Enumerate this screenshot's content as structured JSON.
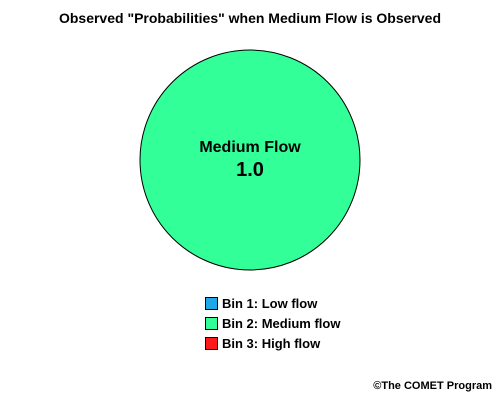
{
  "chart_data": {
    "type": "pie",
    "title": "Observed \"Probabilities\" when Medium Flow is Observed",
    "categories": [
      "Bin 1: Low flow",
      "Bin 2: Medium flow",
      "Bin 3: High flow"
    ],
    "values": [
      0,
      1.0,
      0
    ],
    "colors": [
      "#1ea8e8",
      "#33ff99",
      "#ff1a1a"
    ],
    "slice_labels": [
      {
        "category_index": 1,
        "name": "Medium Flow",
        "value": "1.0"
      }
    ],
    "legend_position": "bottom-center",
    "grid": false
  },
  "credit": "©The COMET Program"
}
